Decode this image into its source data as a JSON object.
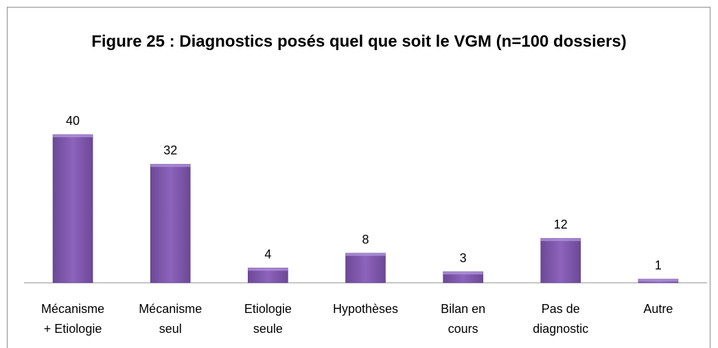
{
  "chart_data": {
    "type": "bar",
    "title": "Figure 25 : Diagnostics posés quel que soit le VGM (n=100 dossiers)",
    "categories": [
      "Mécanisme + Etiologie",
      "Mécanisme seul",
      "Etiologie seule",
      "Hypothèses",
      "Bilan en cours",
      "Pas de diagnostic",
      "Autre"
    ],
    "values": [
      40,
      32,
      4,
      8,
      3,
      12,
      1
    ],
    "color": "#8c64bc"
  }
}
